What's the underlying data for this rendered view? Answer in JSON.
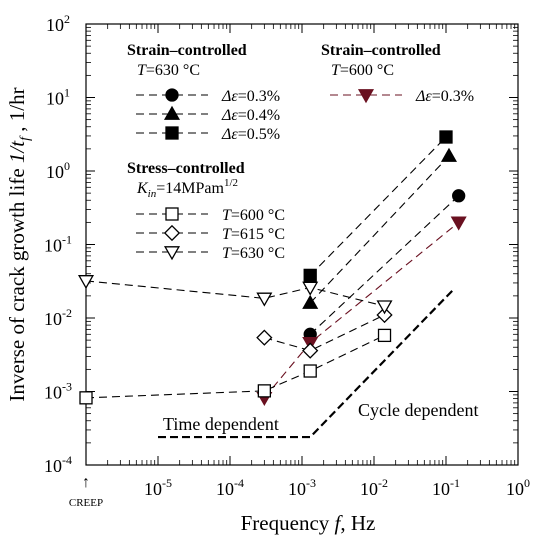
{
  "chart_data": {
    "type": "scatter",
    "x_scale": "log",
    "y_scale": "log",
    "xlim": [
      1e-06,
      1
    ],
    "ylim": [
      0.0001,
      100
    ],
    "xlabel": {
      "main": "Frequency ",
      "var": "f",
      "unit": ", Hz"
    },
    "ylabel": {
      "main": "Inverse of crack growth life ",
      "var": "1/t",
      "sub": "f",
      "unit": " , 1/hr"
    },
    "x_ticks": [
      {
        "value": 1e-05,
        "base": "10",
        "exp": "-5"
      },
      {
        "value": 0.0001,
        "base": "10",
        "exp": "-4"
      },
      {
        "value": 0.001,
        "base": "10",
        "exp": "-3"
      },
      {
        "value": 0.01,
        "base": "10",
        "exp": "-2"
      },
      {
        "value": 0.1,
        "base": "10",
        "exp": "-1"
      },
      {
        "value": 1,
        "base": "10",
        "exp": "0"
      }
    ],
    "y_ticks": [
      {
        "value": 0.0001,
        "base": "10",
        "exp": "-4"
      },
      {
        "value": 0.001,
        "base": "10",
        "exp": "-3"
      },
      {
        "value": 0.01,
        "base": "10",
        "exp": "-2"
      },
      {
        "value": 0.1,
        "base": "10",
        "exp": "-1"
      },
      {
        "value": 1,
        "base": "10",
        "exp": "0"
      },
      {
        "value": 10,
        "base": "10",
        "exp": "1"
      },
      {
        "value": 100,
        "base": "10",
        "exp": "2"
      }
    ],
    "creep_label": "CREEP",
    "creep_arrow": "↑",
    "annotations": {
      "time_dependent": "Time dependent",
      "cycle_dependent": "Cycle dependent"
    },
    "guide_line": [
      {
        "x": 1e-05,
        "y": 0.00024
      },
      {
        "x": 0.0013,
        "y": 0.00024
      },
      {
        "x": 0.13,
        "y": 0.025
      }
    ],
    "legend_groups": {
      "strain_630": {
        "heading": "Strain–controlled",
        "cond_var": "T",
        "cond_val": "=630 °C"
      },
      "strain_600": {
        "heading": "Strain–controlled",
        "cond_var": "T",
        "cond_val": "=600 °C"
      },
      "stress": {
        "heading": "Stress–controlled",
        "cond_var": "K",
        "cond_sub": "in",
        "cond_val": "=14MPam",
        "cond_sup": "1/2"
      }
    },
    "series": [
      {
        "name": "Δε=0.3%",
        "legend_var": "Δε",
        "legend_val": "=0.3%",
        "group": "strain_630",
        "marker": "circle",
        "filled": true,
        "color": "#000000",
        "points": [
          {
            "x": 0.0013,
            "y": 0.006
          },
          {
            "x": 0.15,
            "y": 0.46
          }
        ]
      },
      {
        "name": "Δε=0.4%",
        "legend_var": "Δε",
        "legend_val": "=0.4%",
        "group": "strain_630",
        "marker": "triangle-up",
        "filled": true,
        "color": "#000000",
        "points": [
          {
            "x": 0.0013,
            "y": 0.016
          },
          {
            "x": 0.11,
            "y": 1.6
          }
        ]
      },
      {
        "name": "Δε=0.5%",
        "legend_var": "Δε",
        "legend_val": "=0.5%",
        "group": "strain_630",
        "marker": "square",
        "filled": true,
        "color": "#000000",
        "points": [
          {
            "x": 0.0013,
            "y": 0.038
          },
          {
            "x": 0.1,
            "y": 2.9
          }
        ]
      },
      {
        "name": "Δε=0.3%",
        "legend_var": "Δε",
        "legend_val": "=0.3%",
        "group": "strain_600",
        "marker": "triangle-down",
        "filled": true,
        "color": "#6a1020",
        "points": [
          {
            "x": 0.0003,
            "y": 0.00082
          },
          {
            "x": 0.0013,
            "y": 0.0046
          },
          {
            "x": 0.15,
            "y": 0.2
          }
        ]
      },
      {
        "name": "T=600 °C",
        "legend_var": "T",
        "legend_val": "=600 °C",
        "group": "stress",
        "marker": "square",
        "filled": false,
        "color": "#000000",
        "points": [
          {
            "x": 1e-06,
            "y": 0.00082
          },
          {
            "x": 0.0003,
            "y": 0.00102
          },
          {
            "x": 0.0013,
            "y": 0.0019
          },
          {
            "x": 0.014,
            "y": 0.0058
          }
        ]
      },
      {
        "name": "T=615 °C",
        "legend_var": "T",
        "legend_val": "=615 °C",
        "group": "stress",
        "marker": "diamond",
        "filled": false,
        "color": "#000000",
        "points": [
          {
            "x": 0.0003,
            "y": 0.0054
          },
          {
            "x": 0.0013,
            "y": 0.0036
          },
          {
            "x": 0.014,
            "y": 0.011
          }
        ]
      },
      {
        "name": "T=630 °C",
        "legend_var": "T",
        "legend_val": "=630 °C",
        "group": "stress",
        "marker": "triangle-down",
        "filled": false,
        "color": "#000000",
        "points": [
          {
            "x": 1e-06,
            "y": 0.032
          },
          {
            "x": 0.0003,
            "y": 0.0185
          },
          {
            "x": 0.0013,
            "y": 0.026
          },
          {
            "x": 0.014,
            "y": 0.0145
          }
        ]
      }
    ]
  }
}
